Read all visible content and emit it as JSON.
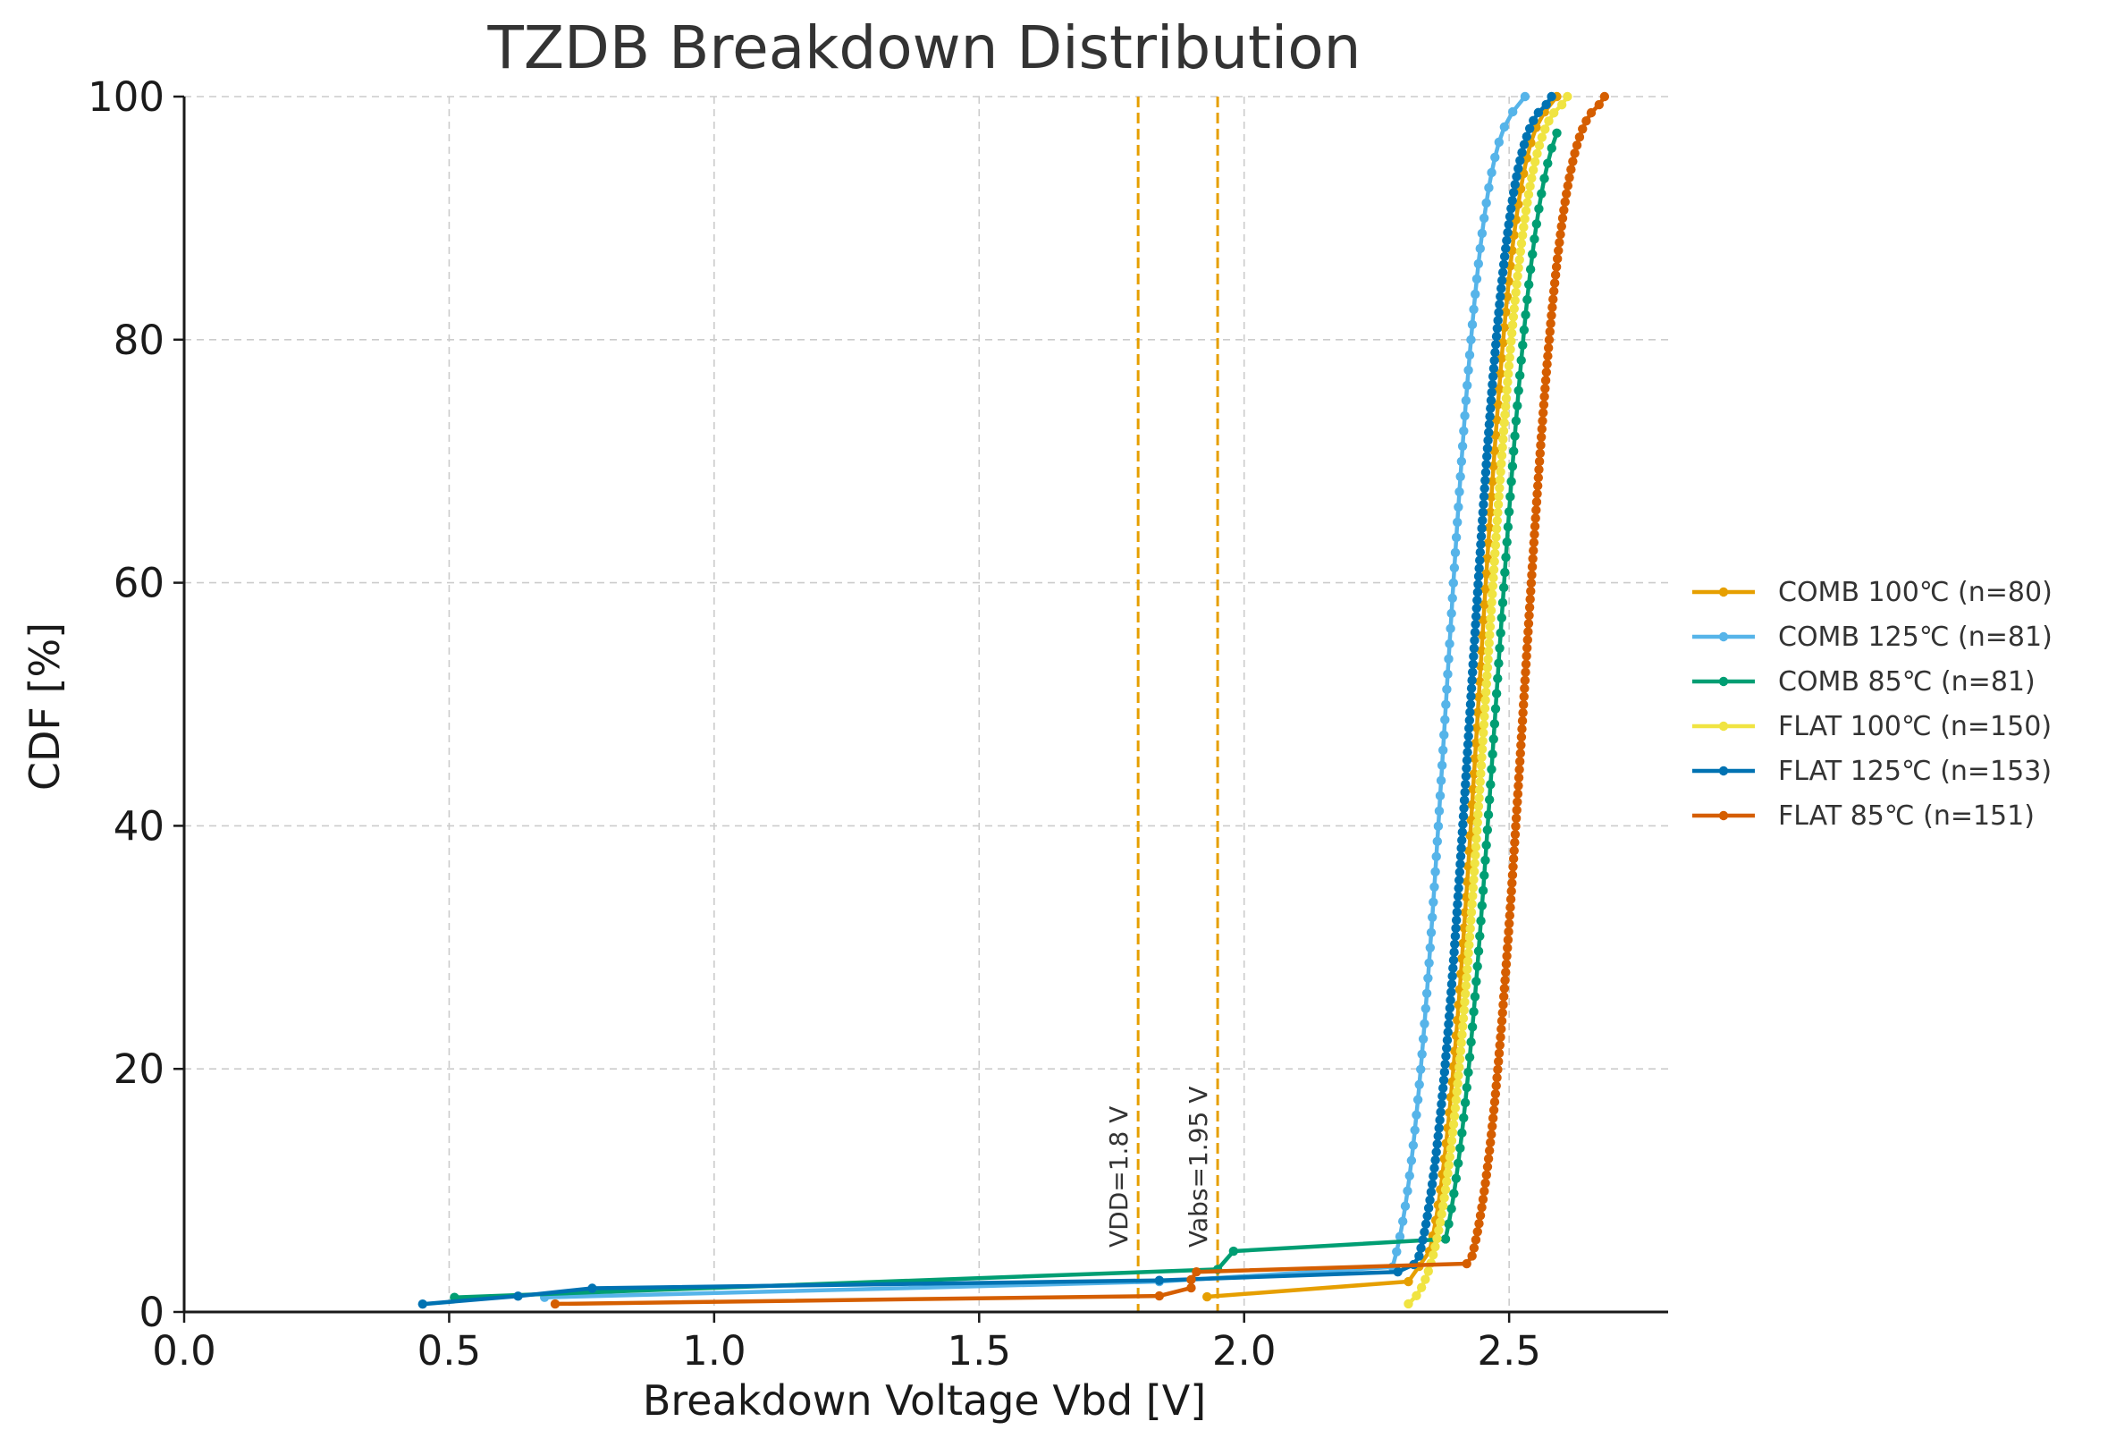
{
  "chart_data": {
    "type": "line",
    "title": "TZDB Breakdown Distribution",
    "xlabel": "Breakdown Voltage Vbd [V]",
    "ylabel": "CDF [%]",
    "xlim": [
      0.0,
      2.8
    ],
    "ylim": [
      0,
      100
    ],
    "xticks": [
      0.0,
      0.5,
      1.0,
      1.5,
      2.0,
      2.5
    ],
    "xtick_labels": [
      "0.0",
      "0.5",
      "1.0",
      "1.5",
      "2.0",
      "2.5"
    ],
    "yticks": [
      0,
      20,
      40,
      60,
      80,
      100
    ],
    "ytick_labels": [
      "0",
      "20",
      "40",
      "60",
      "80",
      "100"
    ],
    "grid": true,
    "legend_position": "right",
    "reference_lines": [
      {
        "x": 1.8,
        "label": "VDD=1.8 V",
        "color": "#E69F00"
      },
      {
        "x": 1.95,
        "label": "Vabs=1.95 V",
        "color": "#E69F00"
      }
    ],
    "series": [
      {
        "name": "COMB 100℃ (n=80)",
        "color": "#E69F00",
        "n": 80,
        "outliers": [
          [
            1.93,
            1.25
          ],
          [
            2.31,
            2.5
          ],
          [
            2.33,
            3.75
          ]
        ],
        "bulk_start": [
          2.35,
          5.0
        ],
        "bulk_end": [
          2.59,
          100.0
        ]
      },
      {
        "name": "COMB 125℃ (n=81)",
        "color": "#56B4E9",
        "n": 81,
        "outliers": [
          [
            0.68,
            1.2
          ],
          [
            1.84,
            2.5
          ]
        ],
        "bulk_start": [
          2.28,
          3.7
        ],
        "bulk_end": [
          2.53,
          100.0
        ]
      },
      {
        "name": "COMB 85℃ (n=81)",
        "color": "#009E73",
        "n": 81,
        "outliers": [
          [
            0.51,
            1.2
          ],
          [
            1.95,
            3.5
          ],
          [
            1.98,
            5.0
          ]
        ],
        "bulk_start": [
          2.38,
          6.0
        ],
        "bulk_end": [
          2.59,
          97.0
        ]
      },
      {
        "name": "FLAT 100℃ (n=150)",
        "color": "#F0E442",
        "n": 150,
        "outliers": [],
        "bulk_start": [
          2.31,
          0.67
        ],
        "bulk_end": [
          2.61,
          100.0
        ]
      },
      {
        "name": "FLAT 125℃ (n=153)",
        "color": "#0072B2",
        "n": 153,
        "outliers": [
          [
            0.45,
            0.65
          ],
          [
            0.63,
            1.3
          ],
          [
            0.77,
            1.95
          ],
          [
            1.84,
            2.6
          ],
          [
            2.29,
            3.3
          ],
          [
            2.32,
            3.9
          ]
        ],
        "bulk_start": [
          2.33,
          4.6
        ],
        "bulk_end": [
          2.58,
          100.0
        ]
      },
      {
        "name": "FLAT 85℃ (n=151)",
        "color": "#D55E00",
        "n": 151,
        "outliers": [
          [
            0.7,
            0.66
          ],
          [
            1.84,
            1.32
          ],
          [
            1.9,
            1.98
          ],
          [
            1.9,
            2.65
          ],
          [
            1.91,
            3.3
          ],
          [
            2.42,
            3.97
          ]
        ],
        "bulk_start": [
          2.43,
          4.6
        ],
        "bulk_end": [
          2.68,
          100.0
        ]
      }
    ]
  }
}
